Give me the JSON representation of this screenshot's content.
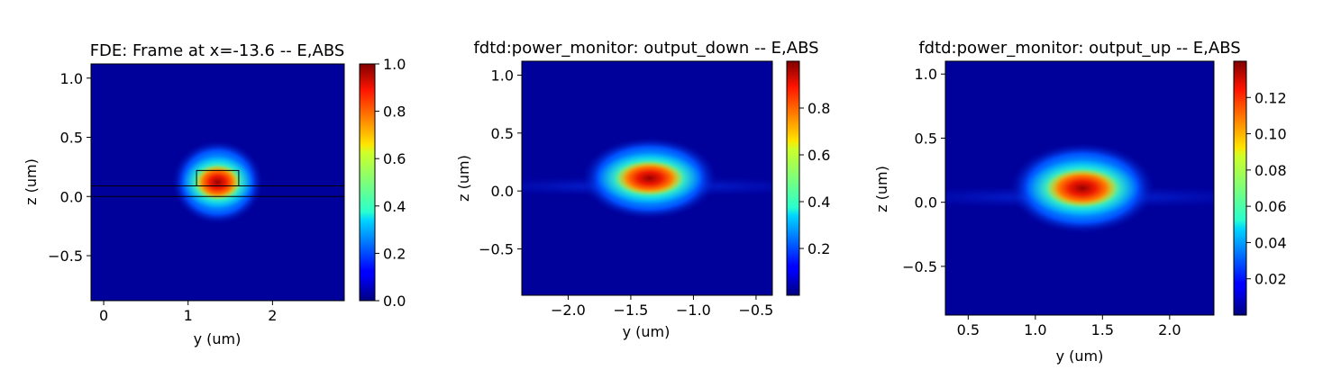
{
  "chart_data": [
    {
      "type": "heatmap",
      "title": "FDE: Frame at x=-13.6 -- E,ABS",
      "xlabel": "y (um)",
      "ylabel": "z (um)",
      "xlim": [
        -0.15,
        2.85
      ],
      "ylim": [
        -0.88,
        1.12
      ],
      "xticks": [
        0,
        1,
        2
      ],
      "xtick_labels": [
        "0",
        "1",
        "2"
      ],
      "yticks": [
        -0.5,
        0.0,
        0.5,
        1.0
      ],
      "ytick_labels": [
        "−0.5",
        "0.0",
        "0.5",
        "1.0"
      ],
      "colormap": "jet",
      "clim": [
        0,
        1.0
      ],
      "cbar_ticks": [
        0.0,
        0.2,
        0.4,
        0.6,
        0.8,
        1.0
      ],
      "cbar_tick_labels": [
        "0.0",
        "0.2",
        "0.4",
        "0.6",
        "0.8",
        "1.0"
      ],
      "mode_center": [
        1.35,
        0.12
      ],
      "peak": 1.0,
      "waveguide_outline": true
    },
    {
      "type": "heatmap",
      "title": "fdtd:power_monitor: output_down -- E,ABS",
      "xlabel": "y (um)",
      "ylabel": "z (um)",
      "xlim": [
        -2.37,
        -0.37
      ],
      "ylim": [
        -0.9,
        1.12
      ],
      "xticks": [
        -2.0,
        -1.5,
        -1.0,
        -0.5
      ],
      "xtick_labels": [
        "−2.0",
        "−1.5",
        "−1.0",
        "−0.5"
      ],
      "yticks": [
        -0.5,
        0.0,
        0.5,
        1.0
      ],
      "ytick_labels": [
        "−0.5",
        "0.0",
        "0.5",
        "1.0"
      ],
      "colormap": "jet",
      "clim": [
        0.0,
        1.0
      ],
      "cbar_ticks": [
        0.2,
        0.4,
        0.6,
        0.8
      ],
      "cbar_tick_labels": [
        "0.2",
        "0.4",
        "0.6",
        "0.8"
      ],
      "mode_center": [
        -1.35,
        0.11
      ],
      "peak": 0.97,
      "waveguide_outline": false
    },
    {
      "type": "heatmap",
      "title": "fdtd:power_monitor: output_up -- E,ABS",
      "xlabel": "y (um)",
      "ylabel": "z (um)",
      "xlim": [
        0.33,
        2.33
      ],
      "ylim": [
        -0.88,
        1.1
      ],
      "xticks": [
        0.5,
        1.0,
        1.5,
        2.0
      ],
      "xtick_labels": [
        "0.5",
        "1.0",
        "1.5",
        "2.0"
      ],
      "yticks": [
        -0.5,
        0.0,
        0.5,
        1.0
      ],
      "ytick_labels": [
        "−0.5",
        "0.0",
        "0.5",
        "1.0"
      ],
      "colormap": "jet",
      "clim": [
        0.0,
        0.14
      ],
      "cbar_ticks": [
        0.02,
        0.04,
        0.06,
        0.08,
        0.1,
        0.12
      ],
      "cbar_tick_labels": [
        "0.02",
        "0.04",
        "0.06",
        "0.08",
        "0.10",
        "0.12"
      ],
      "mode_center": [
        1.35,
        0.11
      ],
      "peak": 0.136,
      "waveguide_outline": false
    }
  ]
}
